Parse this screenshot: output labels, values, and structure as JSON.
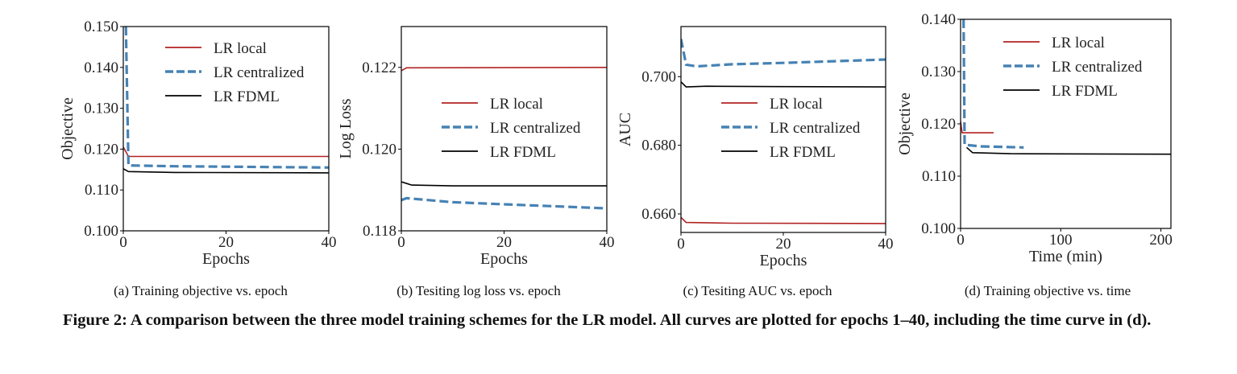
{
  "chart_data": [
    {
      "type": "line",
      "subcaption": "(a)  Training objective vs. epoch",
      "xlabel": "Epochs",
      "ylabel": "Objective",
      "xlim": [
        0,
        40
      ],
      "ylim": [
        0.1,
        0.15
      ],
      "xticks": [
        0,
        20,
        40
      ],
      "yticks": [
        0.1,
        0.11,
        0.12,
        0.13,
        0.14,
        0.15
      ],
      "ytick_labels": [
        "0.100",
        "0.110",
        "0.120",
        "0.130",
        "0.140",
        "0.150"
      ],
      "legend": "top-center",
      "series": [
        {
          "name": "LR local",
          "color": "#b22222",
          "style": "solid",
          "x": [
            0,
            1,
            40
          ],
          "y": [
            0.1205,
            0.1182,
            0.1182
          ]
        },
        {
          "name": "LR centralized",
          "color": "#4682b4",
          "style": "dashed",
          "x": [
            0.5,
            1,
            10,
            40
          ],
          "y": [
            0.15,
            0.116,
            0.1158,
            0.1155
          ]
        },
        {
          "name": "LR FDML",
          "color": "#000000",
          "style": "solid",
          "x": [
            0,
            1,
            10,
            40
          ],
          "y": [
            0.1152,
            0.1145,
            0.1143,
            0.1142
          ]
        }
      ]
    },
    {
      "type": "line",
      "subcaption": "(b)  Tesiting log loss vs. epoch",
      "xlabel": "Epochs",
      "ylabel": "Log Loss",
      "xlim": [
        0,
        40
      ],
      "ylim": [
        0.118,
        0.123
      ],
      "xticks": [
        0,
        20,
        40
      ],
      "yticks": [
        0.118,
        0.12,
        0.122
      ],
      "ytick_labels": [
        "0.118",
        "0.120",
        "0.122"
      ],
      "legend": "center-right",
      "series": [
        {
          "name": "LR local",
          "color": "#b22222",
          "style": "solid",
          "x": [
            0,
            1,
            40
          ],
          "y": [
            0.12192,
            0.12199,
            0.122
          ]
        },
        {
          "name": "LR centralized",
          "color": "#4682b4",
          "style": "dashed",
          "x": [
            0,
            1,
            10,
            20,
            30,
            40
          ],
          "y": [
            0.11875,
            0.1188,
            0.1187,
            0.11865,
            0.1186,
            0.11855
          ]
        },
        {
          "name": "LR FDML",
          "color": "#000000",
          "style": "solid",
          "x": [
            0,
            2,
            10,
            40
          ],
          "y": [
            0.1192,
            0.11912,
            0.1191,
            0.1191
          ]
        }
      ]
    },
    {
      "type": "line",
      "subcaption": "(c)  Tesiting AUC vs. epoch",
      "xlabel": "Epochs",
      "ylabel": "AUC",
      "xlim": [
        0,
        40
      ],
      "ylim": [
        0.6546,
        0.7146
      ],
      "xticks": [
        0,
        20,
        40
      ],
      "yticks": [
        0.66,
        0.68,
        0.7
      ],
      "ytick_labels": [
        "0.660",
        "0.680",
        "0.700"
      ],
      "legend": "center-right",
      "series": [
        {
          "name": "LR local",
          "color": "#b22222",
          "style": "solid",
          "x": [
            0,
            1,
            10,
            40
          ],
          "y": [
            0.659,
            0.6575,
            0.6573,
            0.6572
          ]
        },
        {
          "name": "LR centralized",
          "color": "#4682b4",
          "style": "dashed",
          "x": [
            0,
            1,
            3,
            10,
            20,
            30,
            40
          ],
          "y": [
            0.711,
            0.7035,
            0.703,
            0.7036,
            0.704,
            0.7045,
            0.705
          ]
        },
        {
          "name": "LR FDML",
          "color": "#000000",
          "style": "solid",
          "x": [
            0,
            1,
            5,
            20,
            40
          ],
          "y": [
            0.6985,
            0.697,
            0.6972,
            0.6971,
            0.697
          ]
        }
      ]
    },
    {
      "type": "line",
      "subcaption": "(d)  Training objective vs. time",
      "xlabel": "Time (min)",
      "ylabel": "Objective",
      "xlim": [
        0,
        210
      ],
      "ylim": [
        0.1,
        0.14
      ],
      "xticks": [
        0,
        100,
        200
      ],
      "yticks": [
        0.1,
        0.11,
        0.12,
        0.13,
        0.14
      ],
      "ytick_labels": [
        "0.100",
        "0.110",
        "0.120",
        "0.130",
        "0.140"
      ],
      "legend": "top-center",
      "series": [
        {
          "name": "LR local",
          "color": "#b22222",
          "style": "solid",
          "x": [
            0,
            1.5,
            33
          ],
          "y": [
            0.1205,
            0.1183,
            0.1183
          ]
        },
        {
          "name": "LR centralized",
          "color": "#4682b4",
          "style": "dashed",
          "x": [
            3,
            4,
            20,
            63
          ],
          "y": [
            0.14,
            0.116,
            0.1157,
            0.1155
          ]
        },
        {
          "name": "LR FDML",
          "color": "#000000",
          "style": "solid",
          "x": [
            6,
            12,
            50,
            210
          ],
          "y": [
            0.1155,
            0.1145,
            0.1143,
            0.1142
          ]
        }
      ]
    }
  ],
  "caption": "Figure 2: A comparison between the three model training schemes for the LR model. All curves are plotted for epochs 1–40, including the time curve in (d)."
}
